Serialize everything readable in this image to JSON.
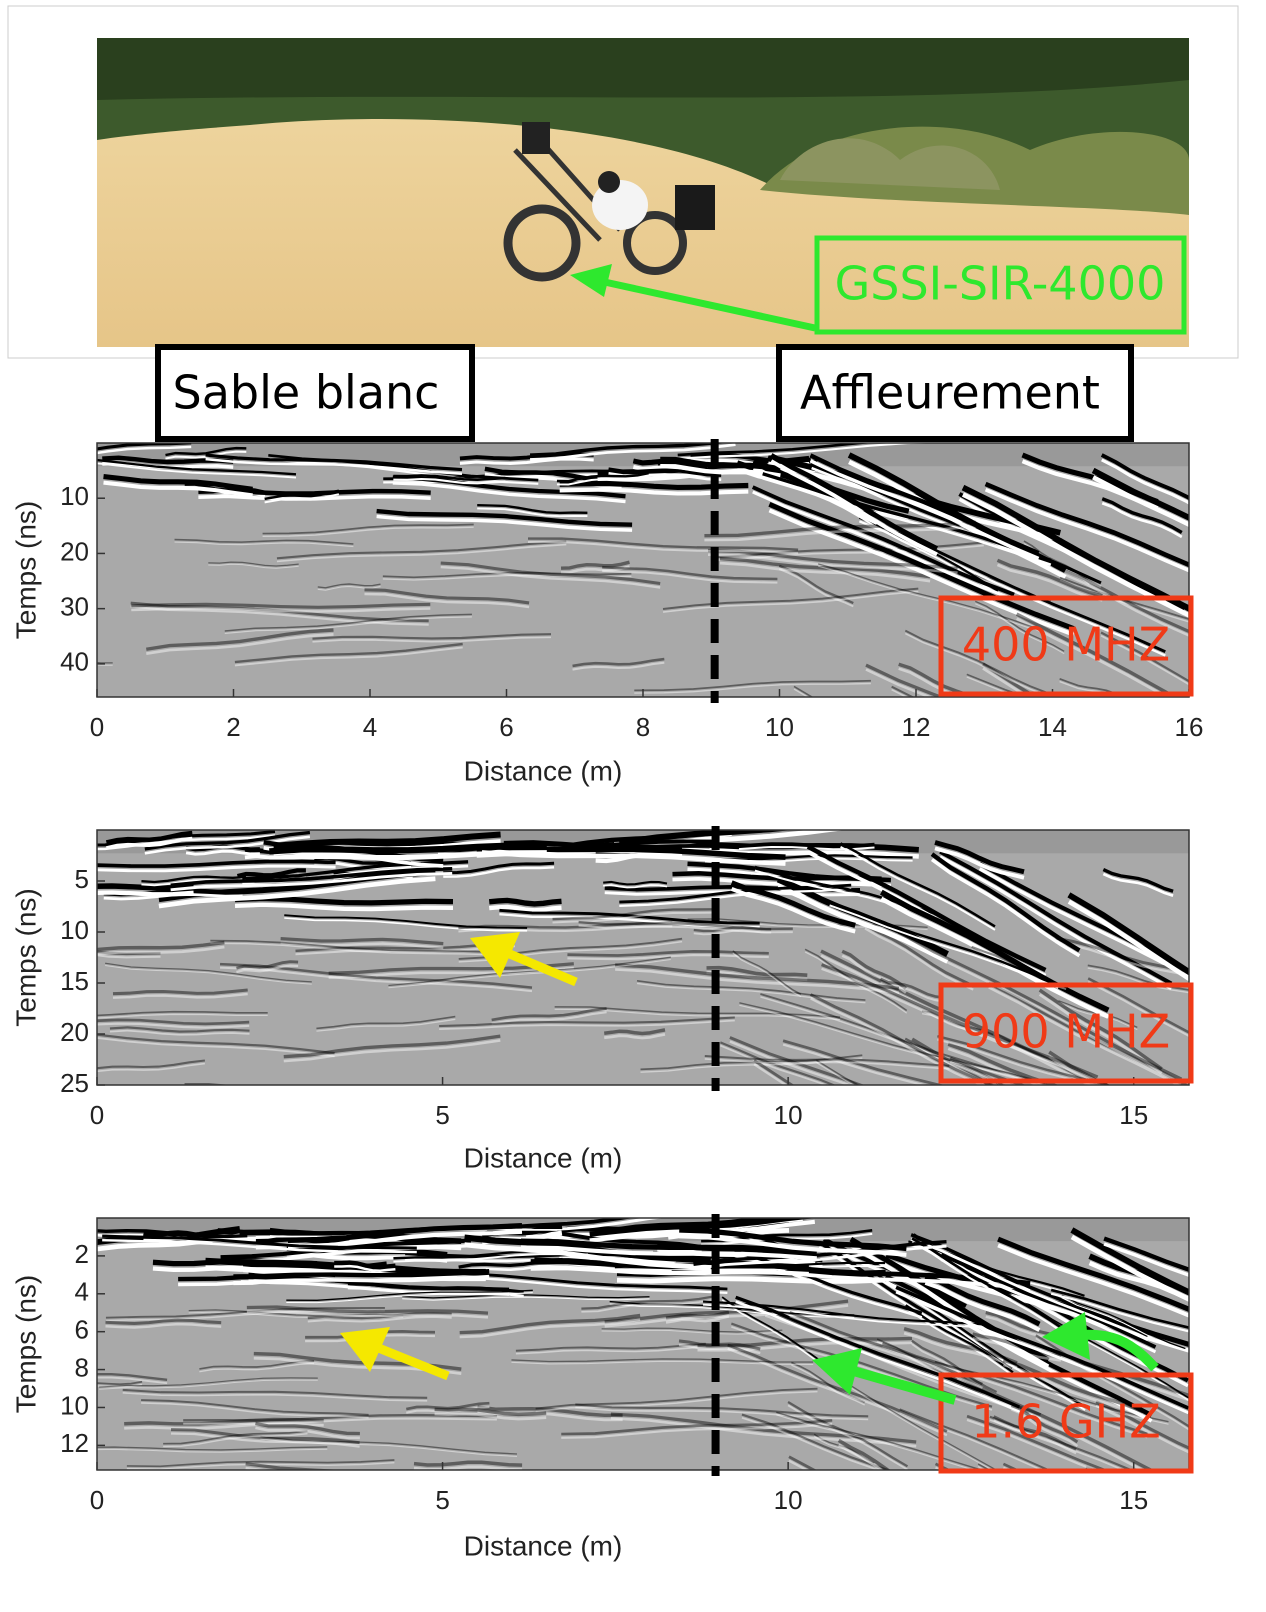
{
  "photo": {
    "label": "GSSI-SIR-4000"
  },
  "zones": [
    "Sable blanc",
    "Affleurement"
  ],
  "chart_data": [
    {
      "type": "radargram",
      "label": "400 MHZ",
      "xlabel": "Distance (m)",
      "ylabel": "Temps (ns)",
      "xlim": [
        0,
        16
      ],
      "xticks": [
        0,
        2,
        4,
        6,
        8,
        10,
        12,
        14,
        16
      ],
      "ylim": [
        0,
        46
      ],
      "yticks": [
        10,
        20,
        30,
        40
      ],
      "y_reversed": true,
      "marker_x": 9.05
    },
    {
      "type": "radargram",
      "label": "900 MHZ",
      "xlabel": "Distance (m)",
      "ylabel": "Temps (ns)",
      "xlim": [
        0,
        15.8
      ],
      "xticks": [
        0,
        5,
        10,
        15
      ],
      "ylim": [
        0,
        25
      ],
      "yticks": [
        5,
        10,
        15,
        20,
        25
      ],
      "y_reversed": true,
      "marker_x": 8.95
    },
    {
      "type": "radargram",
      "label": "1.6 GHZ",
      "xlabel": "Distance (m)",
      "ylabel": "Temps (ns)",
      "xlim": [
        0,
        15.8
      ],
      "xticks": [
        0,
        5,
        10,
        15
      ],
      "ylim": [
        0,
        13.3
      ],
      "yticks": [
        2,
        4,
        6,
        8,
        10,
        12
      ],
      "y_reversed": true,
      "marker_x": 8.95
    }
  ]
}
